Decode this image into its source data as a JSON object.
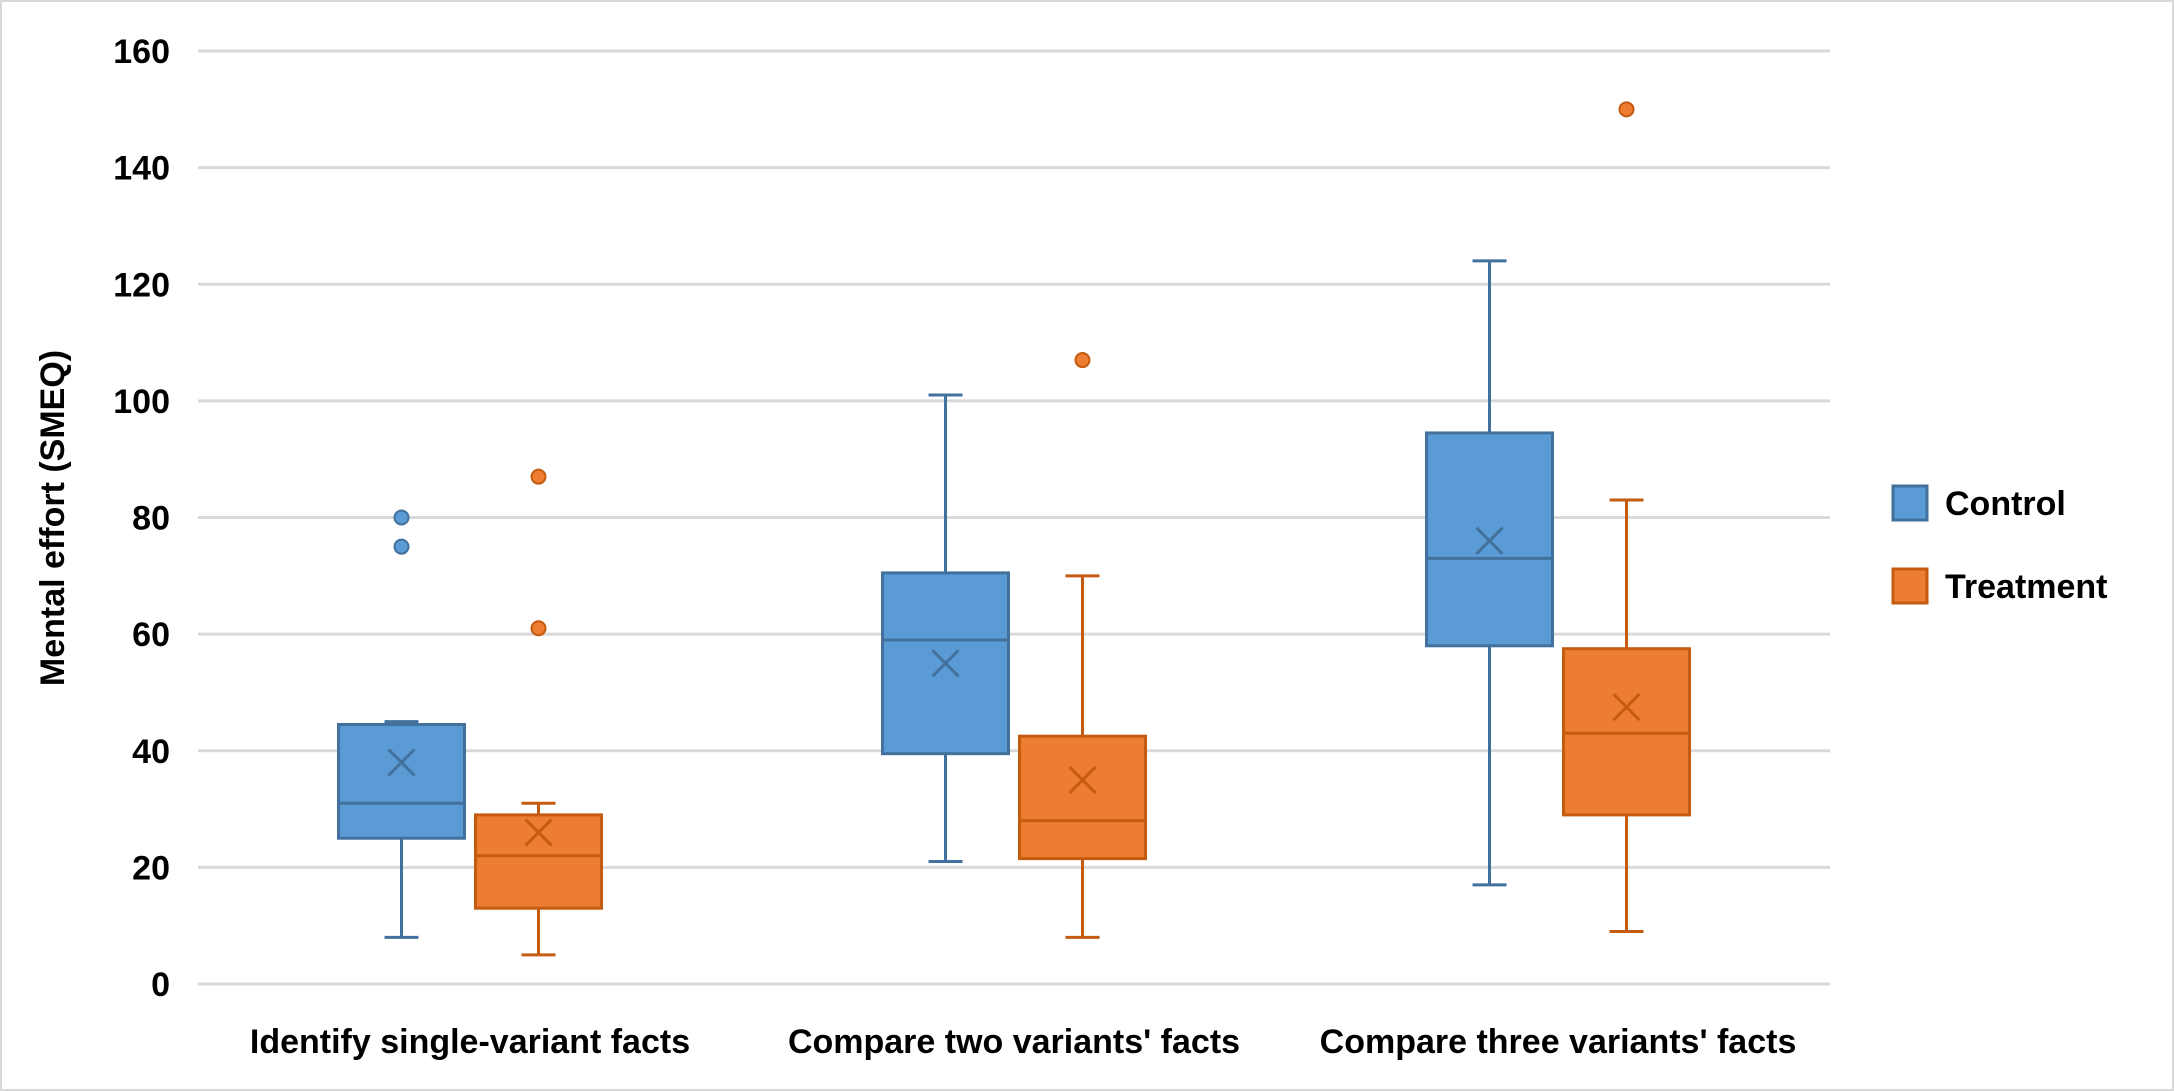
{
  "chart_data": {
    "type": "box",
    "title": "",
    "xlabel": "",
    "ylabel": "Mental effort (SMEQ)",
    "ylim": [
      0,
      160
    ],
    "yticks": [
      0,
      20,
      40,
      60,
      80,
      100,
      120,
      140,
      160
    ],
    "grid": true,
    "legend_position": "right",
    "categories": [
      "Identify single-variant facts",
      "Compare two variants' facts",
      "Compare three variants' facts"
    ],
    "series": [
      {
        "name": "Control",
        "color": "#5b9bd5",
        "edge_color": "#41719c",
        "boxes": [
          {
            "min": 8,
            "q1": 25,
            "median": 31,
            "q3": 44.5,
            "max": 45,
            "mean": 38,
            "outliers": [
              75,
              80
            ]
          },
          {
            "min": 21,
            "q1": 39.5,
            "median": 59,
            "q3": 70.5,
            "max": 101,
            "mean": 55,
            "outliers": []
          },
          {
            "min": 17,
            "q1": 58,
            "median": 73,
            "q3": 94.5,
            "max": 124,
            "mean": 76,
            "outliers": []
          }
        ]
      },
      {
        "name": "Treatment",
        "color": "#ed7d31",
        "edge_color": "#c55a11",
        "boxes": [
          {
            "min": 5,
            "q1": 13,
            "median": 22,
            "q3": 29,
            "max": 31,
            "mean": 26,
            "outliers": [
              61,
              87
            ]
          },
          {
            "min": 8,
            "q1": 21.5,
            "median": 28,
            "q3": 42.5,
            "max": 70,
            "mean": 35,
            "outliers": [
              107
            ]
          },
          {
            "min": 9,
            "q1": 29,
            "median": 43,
            "q3": 57.5,
            "max": 83,
            "mean": 47.5,
            "outliers": [
              150
            ]
          }
        ]
      }
    ]
  }
}
